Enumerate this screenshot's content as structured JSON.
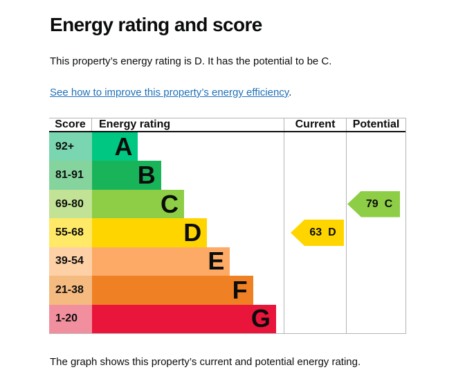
{
  "header": {
    "title": "Energy rating and score",
    "intro": "This property’s energy rating is D. It has the potential to be C.",
    "link": "See how to improve this property’s energy efficiency",
    "link_suffix": "."
  },
  "footer": {
    "caption": "The graph shows this property’s current and potential energy rating."
  },
  "chart_data": {
    "type": "table",
    "title": "Energy rating and score",
    "columns": [
      "Score",
      "Energy rating",
      "Current",
      "Potential"
    ],
    "bands": [
      {
        "score_range": "92+",
        "letter": "A",
        "bar_color": "#00c781",
        "score_bg": "#7ad6b1",
        "bar_pct": 24
      },
      {
        "score_range": "81-91",
        "letter": "B",
        "bar_color": "#19b459",
        "score_bg": "#85d49e",
        "bar_pct": 36
      },
      {
        "score_range": "69-80",
        "letter": "C",
        "bar_color": "#8dce46",
        "score_bg": "#c2e295",
        "bar_pct": 48
      },
      {
        "score_range": "55-68",
        "letter": "D",
        "bar_color": "#ffd500",
        "score_bg": "#ffe966",
        "bar_pct": 60
      },
      {
        "score_range": "39-54",
        "letter": "E",
        "bar_color": "#fcaa65",
        "score_bg": "#fdd0a6",
        "bar_pct": 72
      },
      {
        "score_range": "21-38",
        "letter": "F",
        "bar_color": "#ef8023",
        "score_bg": "#f5ba80",
        "bar_pct": 84
      },
      {
        "score_range": "1-20",
        "letter": "G",
        "bar_color": "#e9153b",
        "score_bg": "#f28f9e",
        "bar_pct": 96
      }
    ],
    "current": {
      "value": "63",
      "letter": "D",
      "color": "#ffd500",
      "band_index": 3
    },
    "potential": {
      "value": "79",
      "letter": "C",
      "color": "#8dce46",
      "band_index": 2
    },
    "colors": {
      "text": "#0b0c0c",
      "link": "#1d70b8",
      "border": "#b1b4b6"
    }
  }
}
